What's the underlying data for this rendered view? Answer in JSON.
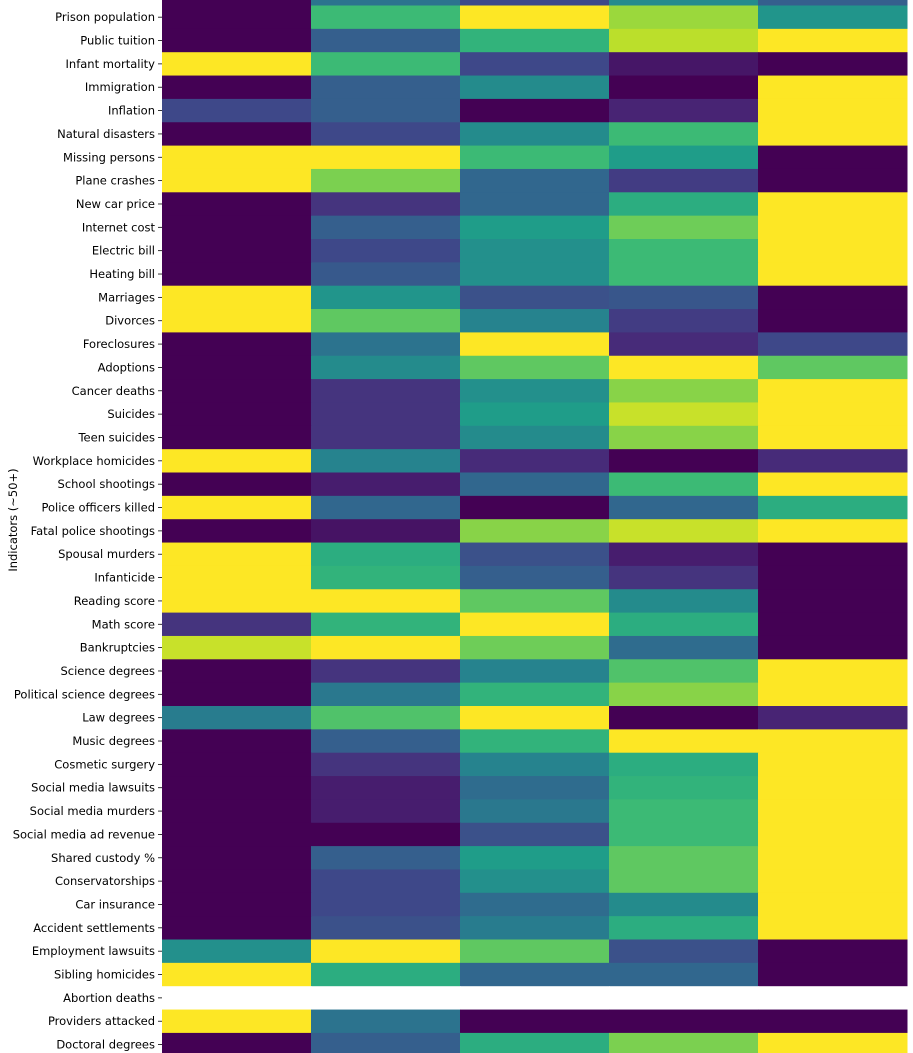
{
  "chart_data": {
    "type": "heatmap",
    "ylabel": "Indicators (~50+)",
    "colormap": "viridis",
    "value_range": [
      0,
      1
    ],
    "missing_color": "#ffffff",
    "row_labels": [
      "Prison population",
      "Public tuition",
      "Infant mortality",
      "Immigration",
      "Inflation",
      "Natural disasters",
      "Missing persons",
      "Plane crashes",
      "New car price",
      "Internet cost",
      "Electric bill",
      "Heating bill",
      "Marriages",
      "Divorces",
      "Foreclosures",
      "Adoptions",
      "Cancer deaths",
      "Suicides",
      "Teen suicides",
      "Workplace homicides",
      "School shootings",
      "Police officers killed",
      "Fatal police shootings",
      "Spousal murders",
      "Infanticide",
      "Reading score",
      "Math score",
      "Bankruptcies",
      "Science degrees",
      "Political science degrees",
      "Law degrees",
      "Music degrees",
      "Cosmetic surgery",
      "Social media lawsuits",
      "Social media murders",
      "Social media ad revenue",
      "Shared custody %",
      "Conservatorships",
      "Car insurance",
      "Accident settlements",
      "Employment lawsuits",
      "Sibling homicides",
      "Abortion deaths",
      "Providers attacked",
      "Doctoral degrees"
    ],
    "values": [
      [
        0.0,
        0.68,
        1.0,
        0.85,
        0.52
      ],
      [
        0.0,
        0.3,
        0.65,
        0.9,
        1.0
      ],
      [
        1.0,
        0.68,
        0.22,
        0.06,
        0.0
      ],
      [
        0.0,
        0.3,
        0.48,
        0.0,
        1.0
      ],
      [
        0.22,
        0.3,
        0.0,
        0.1,
        1.0
      ],
      [
        0.0,
        0.22,
        0.48,
        0.68,
        1.0
      ],
      [
        1.0,
        1.0,
        0.68,
        0.55,
        0.0
      ],
      [
        1.0,
        0.8,
        0.33,
        0.18,
        0.0
      ],
      [
        0.0,
        0.15,
        0.33,
        0.62,
        1.0
      ],
      [
        0.0,
        0.3,
        0.55,
        0.78,
        1.0
      ],
      [
        0.0,
        0.22,
        0.5,
        0.68,
        1.0
      ],
      [
        0.0,
        0.28,
        0.5,
        0.68,
        1.0
      ],
      [
        1.0,
        0.52,
        0.25,
        0.27,
        0.0
      ],
      [
        1.0,
        0.75,
        0.45,
        0.18,
        0.0
      ],
      [
        0.0,
        0.38,
        1.0,
        0.12,
        0.22
      ],
      [
        0.0,
        0.48,
        0.75,
        1.0,
        0.75
      ],
      [
        0.0,
        0.15,
        0.5,
        0.82,
        1.0
      ],
      [
        0.0,
        0.15,
        0.55,
        0.92,
        1.0
      ],
      [
        0.0,
        0.15,
        0.48,
        0.82,
        1.0
      ],
      [
        1.0,
        0.45,
        0.12,
        0.0,
        0.12
      ],
      [
        0.0,
        0.08,
        0.33,
        0.68,
        1.0
      ],
      [
        1.0,
        0.33,
        0.0,
        0.33,
        0.62
      ],
      [
        0.0,
        0.05,
        0.82,
        0.92,
        1.0
      ],
      [
        1.0,
        0.62,
        0.25,
        0.08,
        0.0
      ],
      [
        1.0,
        0.65,
        0.3,
        0.15,
        0.0
      ],
      [
        1.0,
        1.0,
        0.75,
        0.48,
        0.0
      ],
      [
        0.15,
        0.65,
        1.0,
        0.62,
        0.0
      ],
      [
        0.92,
        1.0,
        0.78,
        0.35,
        0.0
      ],
      [
        0.0,
        0.15,
        0.45,
        0.72,
        1.0
      ],
      [
        0.0,
        0.4,
        0.65,
        0.82,
        1.0
      ],
      [
        0.42,
        0.72,
        1.0,
        0.0,
        0.1
      ],
      [
        0.0,
        0.3,
        0.65,
        1.0,
        1.0
      ],
      [
        0.0,
        0.15,
        0.45,
        0.62,
        1.0
      ],
      [
        0.0,
        0.08,
        0.35,
        0.65,
        1.0
      ],
      [
        0.0,
        0.08,
        0.4,
        0.68,
        1.0
      ],
      [
        0.0,
        0.0,
        0.25,
        0.68,
        1.0
      ],
      [
        0.0,
        0.3,
        0.55,
        0.75,
        1.0
      ],
      [
        0.0,
        0.22,
        0.5,
        0.75,
        1.0
      ],
      [
        0.0,
        0.22,
        0.35,
        0.48,
        1.0
      ],
      [
        0.0,
        0.25,
        0.42,
        0.62,
        1.0
      ],
      [
        0.5,
        1.0,
        0.75,
        0.25,
        0.0
      ],
      [
        1.0,
        0.62,
        0.33,
        0.33,
        0.0
      ],
      [
        null,
        null,
        null,
        null,
        null
      ],
      [
        1.0,
        0.38,
        0.0,
        0.0,
        0.0
      ],
      [
        0.0,
        0.3,
        0.62,
        0.8,
        1.0
      ]
    ]
  }
}
